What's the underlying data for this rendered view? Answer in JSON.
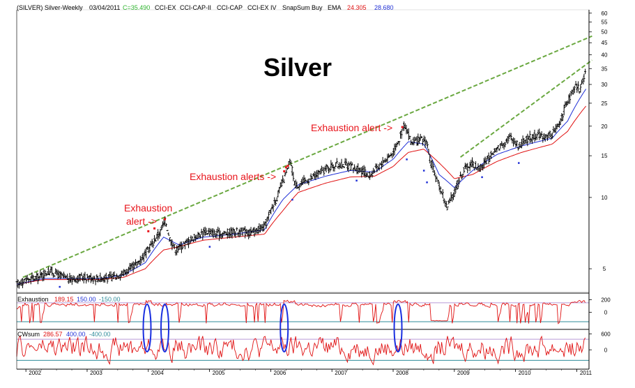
{
  "header": {
    "symbol": "(SILVER) Silver-Weekly",
    "date": "03/04/2011",
    "close": "C=35.490",
    "ind1": "CCI-EX",
    "ind2": "CCI-CAP-II",
    "ind3": "CCI-CAP",
    "ind4": "CCI-EX IV",
    "ind5": "SnapSum Buy",
    "ema_label": "EMA",
    "ema1": "24.305",
    "ema2": "28.680"
  },
  "colors": {
    "price": "#000000",
    "ema_fast": "#1f2fd6",
    "ema_slow": "#e01010",
    "trend": "#6aa840",
    "annotation": "#e8141b",
    "level_upper": "#b99ad8",
    "level_lower": "#2e8b9a",
    "oval": "#1a2fe0",
    "axis": "#000000"
  },
  "chart_data": [
    {
      "type": "line",
      "panel": "price",
      "title": "Silver",
      "scale": "log",
      "ylim": [
        4,
        62
      ],
      "y_ticks": [
        "5",
        "10",
        "15",
        "20",
        "25",
        "30",
        "35",
        "40",
        "45",
        "50",
        "55",
        "60"
      ],
      "x_ticks": [
        "2002",
        "2003",
        "2004",
        "2005",
        "2006",
        "2007",
        "2008",
        "2009",
        "2010",
        "2011"
      ],
      "x_range": [
        2001.85,
        2011.2
      ],
      "series": [
        {
          "role": "close",
          "points": [
            [
              2001.85,
              4.3
            ],
            [
              2002.0,
              4.5
            ],
            [
              2002.2,
              4.6
            ],
            [
              2002.4,
              4.9
            ],
            [
              2002.55,
              4.7
            ],
            [
              2002.7,
              4.5
            ],
            [
              2002.9,
              4.6
            ],
            [
              2003.0,
              4.6
            ],
            [
              2003.2,
              4.55
            ],
            [
              2003.4,
              4.6
            ],
            [
              2003.6,
              4.8
            ],
            [
              2003.8,
              5.2
            ],
            [
              2003.95,
              5.8
            ],
            [
              2004.05,
              6.3
            ],
            [
              2004.2,
              7.2
            ],
            [
              2004.28,
              8.0
            ],
            [
              2004.35,
              6.7
            ],
            [
              2004.45,
              6.0
            ],
            [
              2004.6,
              6.4
            ],
            [
              2004.8,
              6.9
            ],
            [
              2004.95,
              7.2
            ],
            [
              2005.1,
              7.0
            ],
            [
              2005.3,
              7.1
            ],
            [
              2005.5,
              7.2
            ],
            [
              2005.7,
              7.1
            ],
            [
              2005.9,
              7.5
            ],
            [
              2006.0,
              8.8
            ],
            [
              2006.1,
              10.0
            ],
            [
              2006.25,
              12.5
            ],
            [
              2006.32,
              14.2
            ],
            [
              2006.4,
              11.2
            ],
            [
              2006.5,
              11.5
            ],
            [
              2006.7,
              12.2
            ],
            [
              2006.9,
              13.2
            ],
            [
              2007.0,
              13.6
            ],
            [
              2007.2,
              13.8
            ],
            [
              2007.4,
              13.2
            ],
            [
              2007.5,
              13.0
            ],
            [
              2007.6,
              12.3
            ],
            [
              2007.8,
              13.8
            ],
            [
              2008.0,
              15.5
            ],
            [
              2008.1,
              17.5
            ],
            [
              2008.18,
              20.5
            ],
            [
              2008.3,
              17.0
            ],
            [
              2008.45,
              17.5
            ],
            [
              2008.55,
              17.2
            ],
            [
              2008.6,
              14.5
            ],
            [
              2008.7,
              12.0
            ],
            [
              2008.8,
              10.5
            ],
            [
              2008.88,
              9.0
            ],
            [
              2009.0,
              10.5
            ],
            [
              2009.15,
              13.0
            ],
            [
              2009.3,
              14.0
            ],
            [
              2009.4,
              13.2
            ],
            [
              2009.5,
              14.0
            ],
            [
              2009.65,
              15.5
            ],
            [
              2009.8,
              17.0
            ],
            [
              2009.92,
              18.0
            ],
            [
              2010.05,
              16.5
            ],
            [
              2010.2,
              17.8
            ],
            [
              2010.35,
              18.3
            ],
            [
              2010.5,
              18.0
            ],
            [
              2010.6,
              18.6
            ],
            [
              2010.7,
              20.0
            ],
            [
              2010.8,
              23.5
            ],
            [
              2010.9,
              27.0
            ],
            [
              2011.0,
              29.5
            ],
            [
              2011.05,
              28.5
            ],
            [
              2011.1,
              31.0
            ],
            [
              2011.15,
              35.49
            ]
          ]
        },
        {
          "role": "ema",
          "label": "24.305",
          "points": [
            [
              2001.85,
              4.3
            ],
            [
              2002.3,
              4.5
            ],
            [
              2002.7,
              4.5
            ],
            [
              2003.2,
              4.5
            ],
            [
              2003.6,
              4.6
            ],
            [
              2003.95,
              5.0
            ],
            [
              2004.25,
              6.0
            ],
            [
              2004.5,
              6.2
            ],
            [
              2004.9,
              6.6
            ],
            [
              2005.4,
              6.8
            ],
            [
              2005.9,
              7.0
            ],
            [
              2006.2,
              8.8
            ],
            [
              2006.45,
              10.5
            ],
            [
              2006.9,
              11.5
            ],
            [
              2007.3,
              12.2
            ],
            [
              2007.7,
              12.3
            ],
            [
              2008.0,
              13.5
            ],
            [
              2008.25,
              15.5
            ],
            [
              2008.5,
              16.0
            ],
            [
              2008.75,
              14.0
            ],
            [
              2009.0,
              12.0
            ],
            [
              2009.3,
              12.5
            ],
            [
              2009.7,
              14.2
            ],
            [
              2010.1,
              15.5
            ],
            [
              2010.6,
              16.8
            ],
            [
              2010.85,
              19.0
            ],
            [
              2011.15,
              24.3
            ]
          ]
        },
        {
          "role": "ema",
          "label": "28.680",
          "points": [
            [
              2001.85,
              4.3
            ],
            [
              2002.3,
              4.55
            ],
            [
              2002.7,
              4.55
            ],
            [
              2003.2,
              4.55
            ],
            [
              2003.6,
              4.7
            ],
            [
              2003.95,
              5.3
            ],
            [
              2004.25,
              6.8
            ],
            [
              2004.5,
              6.3
            ],
            [
              2004.9,
              6.8
            ],
            [
              2005.4,
              7.0
            ],
            [
              2005.9,
              7.3
            ],
            [
              2006.2,
              9.8
            ],
            [
              2006.45,
              11.3
            ],
            [
              2006.9,
              12.3
            ],
            [
              2007.3,
              13.0
            ],
            [
              2007.7,
              12.8
            ],
            [
              2008.0,
              14.5
            ],
            [
              2008.25,
              17.2
            ],
            [
              2008.5,
              16.8
            ],
            [
              2008.75,
              12.5
            ],
            [
              2009.0,
              11.0
            ],
            [
              2009.3,
              13.0
            ],
            [
              2009.7,
              15.2
            ],
            [
              2010.1,
              16.5
            ],
            [
              2010.6,
              17.8
            ],
            [
              2010.85,
              21.0
            ],
            [
              2011.15,
              28.7
            ]
          ]
        }
      ]
    },
    {
      "type": "line",
      "panel": "exhaustion",
      "label": "Exhaustion",
      "values_shown": [
        "189.15",
        "150.00",
        "-150.00"
      ],
      "ylim": [
        -250,
        260
      ],
      "y_ticks": [
        "200",
        "0"
      ],
      "levels": [
        150,
        -150
      ]
    },
    {
      "type": "line",
      "panel": "cwsum",
      "label": "CWsum",
      "values_shown": [
        "286.57",
        "400.00",
        "-400.00"
      ],
      "ylim": [
        -600,
        720
      ],
      "y_ticks": [
        "600",
        "0"
      ],
      "levels": [
        400,
        -400
      ]
    }
  ],
  "annotations": {
    "alert1_line1": "Exhaustion",
    "alert1_line2": "alert ->",
    "alert2": "Exhaustion alerts ->",
    "alert3": "Exhaustion alert ->"
  }
}
